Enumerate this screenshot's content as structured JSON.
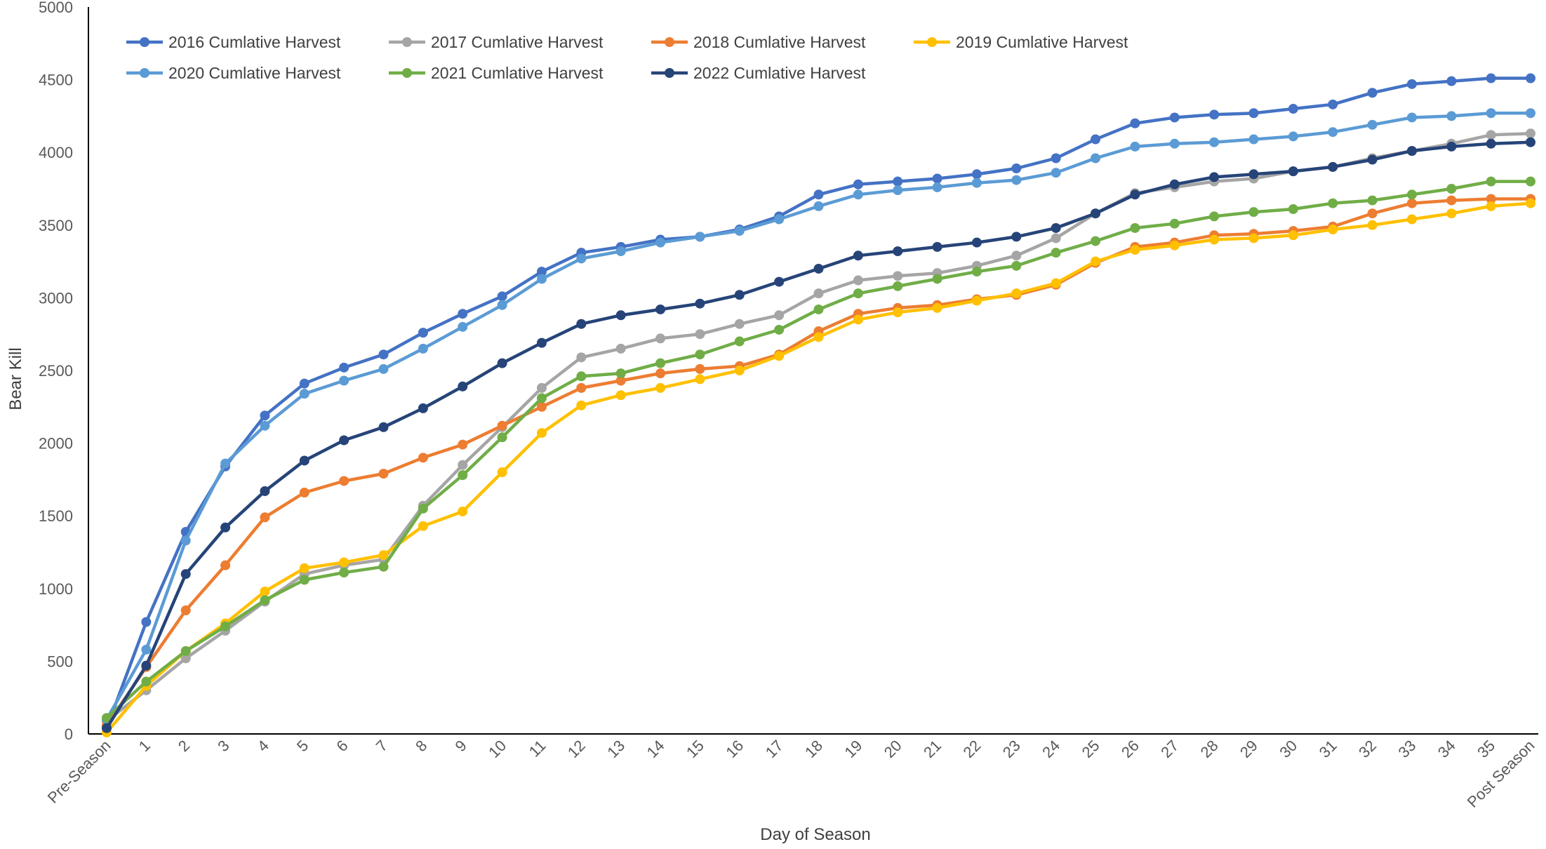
{
  "chart_data": {
    "type": "line",
    "xlabel": "Day of Season",
    "ylabel": "Bear Kill",
    "ylim": [
      0,
      5000
    ],
    "yticks": [
      0,
      500,
      1000,
      1500,
      2000,
      2500,
      3000,
      3500,
      4000,
      4500,
      5000
    ],
    "grid": false,
    "legend_position": "top-left",
    "categories": [
      "Pre-Season",
      "1",
      "2",
      "3",
      "4",
      "5",
      "6",
      "7",
      "8",
      "9",
      "10",
      "11",
      "12",
      "13",
      "14",
      "15",
      "16",
      "17",
      "18",
      "19",
      "20",
      "21",
      "22",
      "23",
      "24",
      "25",
      "26",
      "27",
      "28",
      "29",
      "30",
      "31",
      "32",
      "33",
      "34",
      "35",
      "Post Season"
    ],
    "series": [
      {
        "name": "2016 Cumlative Harvest",
        "color": "#4472C4",
        "values": [
          40,
          770,
          1390,
          1840,
          2190,
          2410,
          2520,
          2610,
          2760,
          2890,
          3010,
          3180,
          3310,
          3350,
          3400,
          3420,
          3470,
          3560,
          3710,
          3780,
          3800,
          3820,
          3850,
          3890,
          3960,
          4090,
          4200,
          4240,
          4260,
          4270,
          4300,
          4330,
          4410,
          4470,
          4490,
          4510,
          4510
        ]
      },
      {
        "name": "2017 Cumlative Harvest",
        "color": "#A5A5A5",
        "values": [
          90,
          300,
          520,
          710,
          910,
          1100,
          1160,
          1200,
          1570,
          1850,
          2110,
          2380,
          2590,
          2650,
          2720,
          2750,
          2820,
          2880,
          3030,
          3120,
          3150,
          3170,
          3220,
          3290,
          3410,
          3580,
          3720,
          3760,
          3800,
          3820,
          3870,
          3900,
          3960,
          4010,
          4060,
          4120,
          4130
        ]
      },
      {
        "name": "2018 Cumlative Harvest",
        "color": "#ED7D31",
        "values": [
          60,
          460,
          850,
          1160,
          1490,
          1660,
          1740,
          1790,
          1900,
          1990,
          2120,
          2250,
          2380,
          2430,
          2480,
          2510,
          2530,
          2610,
          2770,
          2890,
          2930,
          2950,
          2990,
          3020,
          3090,
          3240,
          3350,
          3380,
          3430,
          3440,
          3460,
          3490,
          3580,
          3650,
          3670,
          3680,
          3680
        ]
      },
      {
        "name": "2019 Cumlative Harvest",
        "color": "#FFC000",
        "values": [
          10,
          330,
          570,
          760,
          980,
          1140,
          1180,
          1230,
          1430,
          1530,
          1800,
          2070,
          2260,
          2330,
          2380,
          2440,
          2500,
          2600,
          2730,
          2850,
          2900,
          2930,
          2980,
          3030,
          3100,
          3250,
          3330,
          3360,
          3400,
          3410,
          3430,
          3470,
          3500,
          3540,
          3580,
          3630,
          3650
        ]
      },
      {
        "name": "2020 Cumlative Harvest",
        "color": "#5B9BD5",
        "values": [
          100,
          580,
          1330,
          1860,
          2120,
          2340,
          2430,
          2510,
          2650,
          2800,
          2950,
          3130,
          3270,
          3320,
          3380,
          3420,
          3460,
          3540,
          3630,
          3710,
          3740,
          3760,
          3790,
          3810,
          3860,
          3960,
          4040,
          4060,
          4070,
          4090,
          4110,
          4140,
          4190,
          4240,
          4250,
          4270,
          4270
        ]
      },
      {
        "name": "2021 Cumlative Harvest",
        "color": "#70AD47",
        "values": [
          110,
          360,
          570,
          740,
          920,
          1060,
          1110,
          1150,
          1550,
          1780,
          2040,
          2310,
          2460,
          2480,
          2550,
          2610,
          2700,
          2780,
          2920,
          3030,
          3080,
          3130,
          3180,
          3220,
          3310,
          3390,
          3480,
          3510,
          3560,
          3590,
          3610,
          3650,
          3670,
          3710,
          3750,
          3800,
          3800
        ]
      },
      {
        "name": "2022 Cumlative Harvest",
        "color": "#264478",
        "values": [
          40,
          470,
          1100,
          1420,
          1670,
          1880,
          2020,
          2110,
          2240,
          2390,
          2550,
          2690,
          2820,
          2880,
          2920,
          2960,
          3020,
          3110,
          3200,
          3290,
          3320,
          3350,
          3380,
          3420,
          3480,
          3580,
          3710,
          3780,
          3830,
          3850,
          3870,
          3900,
          3950,
          4010,
          4040,
          4060,
          4070
        ]
      }
    ]
  }
}
